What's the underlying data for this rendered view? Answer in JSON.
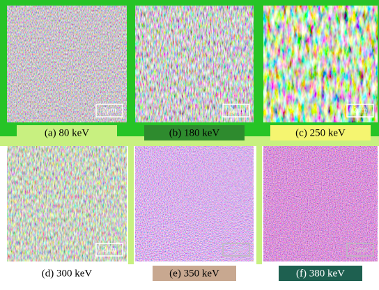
{
  "panels": [
    {
      "caption": "(a) 80 keV",
      "scale_bar": "2μm"
    },
    {
      "caption": "(b) 180 keV",
      "scale_bar": "2μm"
    },
    {
      "caption": "(c) 250 keV",
      "scale_bar": "2μm"
    },
    {
      "caption": "(d) 300 keV",
      "scale_bar": "2μm"
    },
    {
      "caption": "(e) 350 keV",
      "scale_bar": "1μm"
    },
    {
      "caption": "(f) 380 keV",
      "scale_bar": "1μm"
    }
  ]
}
